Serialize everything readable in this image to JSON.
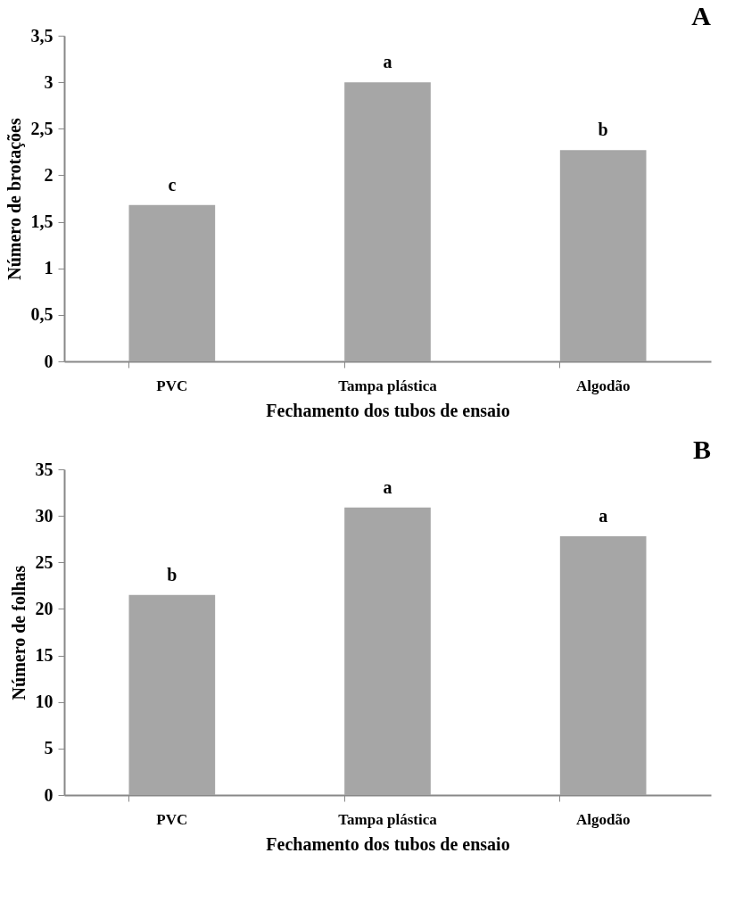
{
  "chart_data": [
    {
      "type": "bar",
      "title": "A",
      "xlabel": "Fechamento dos tubos de ensaio",
      "ylabel": "Número de brotações",
      "categories": [
        "PVC",
        "Tampa plástica",
        "Algodão"
      ],
      "values": [
        1.68,
        3.0,
        2.27
      ],
      "color": "#a6a6a6",
      "ylim": [
        0,
        3.5
      ],
      "yticks": [
        0,
        {
          "value": 0.5,
          "label": "0,5"
        },
        1,
        {
          "value": 1.5,
          "label": "1,5"
        },
        2,
        {
          "value": 2.5,
          "label": "2,5"
        },
        3,
        {
          "value": 3.5,
          "label": "3,5"
        }
      ],
      "grid": false,
      "annotations": [
        {
          "text": "c",
          "x": "PVC",
          "y": 1.68
        },
        {
          "text": "a",
          "x": "Tampa plástica",
          "y": 3.0
        },
        {
          "text": "b",
          "x": "Algodão",
          "y": 2.27
        }
      ]
    },
    {
      "type": "bar",
      "title": "B",
      "xlabel": "Fechamento dos tubos de ensaio",
      "ylabel": "Número de folhas",
      "categories": [
        "PVC",
        "Tampa plástica",
        "Algodão"
      ],
      "values": [
        21.5,
        30.9,
        27.8
      ],
      "color": "#a6a6a6",
      "ylim": [
        0,
        35
      ],
      "yticks": [
        0,
        5,
        10,
        15,
        20,
        25,
        30,
        35
      ],
      "grid": false,
      "annotations": [
        {
          "text": "b",
          "x": "PVC",
          "y": 21.5
        },
        {
          "text": "a",
          "x": "Tampa plástica",
          "y": 30.9
        },
        {
          "text": "a",
          "x": "Algodão",
          "y": 27.8
        }
      ]
    }
  ]
}
